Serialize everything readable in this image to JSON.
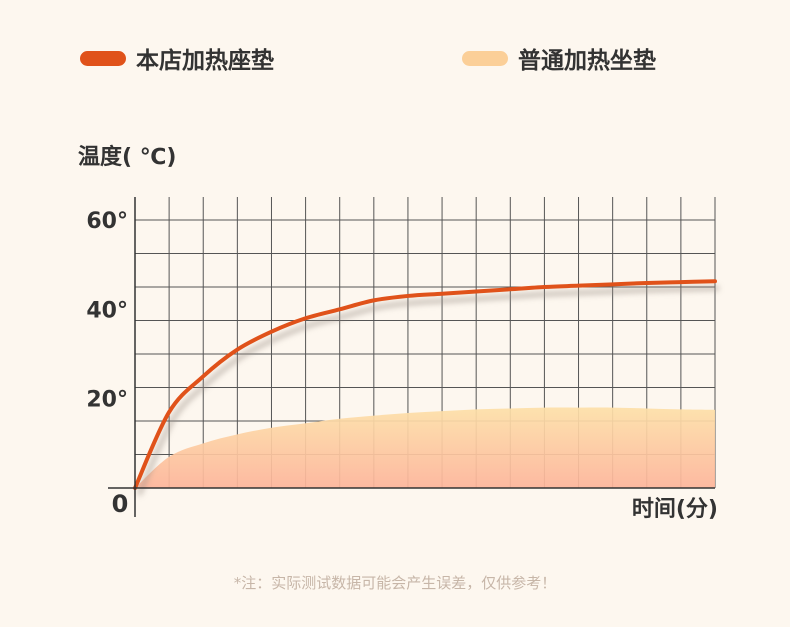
{
  "legend": [
    {
      "label": "本店加热座垫",
      "color": "#e0521a"
    },
    {
      "label": "普通加热坐垫",
      "color": "#fbcf98"
    }
  ],
  "note": "*注：实际测试数据可能会产生误差，仅供参考！",
  "chart_data": {
    "type": "area",
    "ylabel": "温度( ℃)",
    "xlabel": "时间(分)",
    "origin_label": "0",
    "y_ticks": [
      {
        "value": 20,
        "label": "20°"
      },
      {
        "value": 40,
        "label": "40°"
      },
      {
        "value": 60,
        "label": "60°"
      }
    ],
    "ylim": [
      0,
      60
    ],
    "xlim": [
      0,
      17
    ],
    "grid": true,
    "series": [
      {
        "name": "本店加热座垫",
        "type": "line",
        "color": "#e0521a",
        "x": [
          0,
          1,
          2,
          3,
          4,
          5,
          6,
          7,
          8,
          9,
          10,
          11,
          12,
          13,
          14,
          15,
          16,
          17
        ],
        "y": [
          0,
          17,
          25,
          31,
          35,
          38,
          40,
          42,
          43,
          43.5,
          44,
          44.5,
          45,
          45.3,
          45.6,
          45.9,
          46.1,
          46.3
        ]
      },
      {
        "name": "普通加热坐垫",
        "type": "area",
        "color": "#fbcf98",
        "x": [
          0,
          1,
          2,
          3,
          4,
          5,
          6,
          7,
          8,
          9,
          10,
          11,
          12,
          13,
          14,
          15,
          16,
          17
        ],
        "y": [
          0,
          7,
          10,
          12,
          13.5,
          14.5,
          15.5,
          16.2,
          16.8,
          17.2,
          17.6,
          17.8,
          18,
          18,
          18,
          17.8,
          17.6,
          17.5
        ]
      }
    ]
  }
}
